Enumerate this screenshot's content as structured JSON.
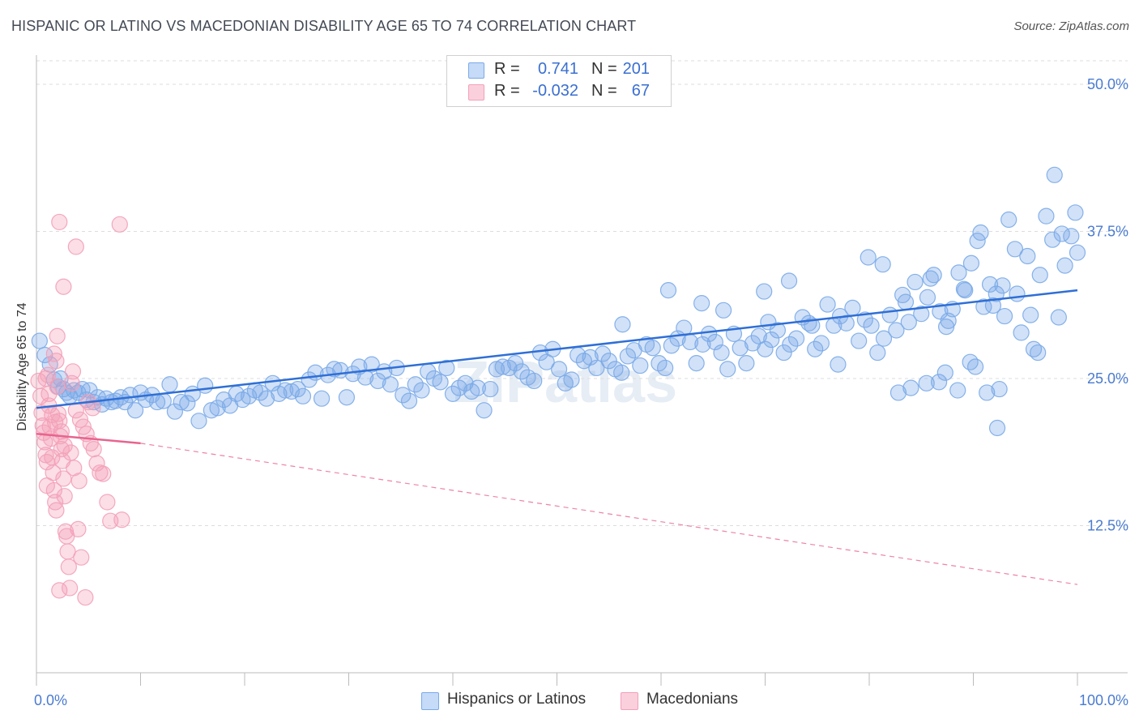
{
  "title": "HISPANIC OR LATINO VS MACEDONIAN DISABILITY AGE 65 TO 74 CORRELATION CHART",
  "source": "Source: ZipAtlas.com",
  "watermark": "ZIPatlas",
  "legend": {
    "rows": [
      {
        "r_label": "R =",
        "r_value": "0.741",
        "n_label": "N =",
        "n_value": "201",
        "color": "#7aaae8"
      },
      {
        "r_label": "R =",
        "r_value": "-0.032",
        "n_label": "N =",
        "n_value": "67",
        "color": "#f3a0b8"
      }
    ]
  },
  "bottom_legend": [
    {
      "label": "Hispanics or Latinos",
      "color": "#7aaae8"
    },
    {
      "label": "Macedonians",
      "color": "#f3a0b8"
    }
  ],
  "chart_data": {
    "type": "scatter",
    "title": "HISPANIC OR LATINO VS MACEDONIAN DISABILITY AGE 65 TO 74 CORRELATION CHART",
    "xlabel": "",
    "ylabel": "Disability Age 65 to 74",
    "xlim": [
      0,
      100
    ],
    "ylim": [
      0,
      52
    ],
    "x_tick_labels": [
      "0.0%",
      "100.0%"
    ],
    "y_ticks": [
      12.5,
      25.0,
      37.5,
      50.0
    ],
    "y_tick_labels": [
      "12.5%",
      "25.0%",
      "37.5%",
      "50.0%"
    ],
    "grid": true,
    "series": [
      {
        "name": "Hispanics or Latinos",
        "color": "#7aaae8",
        "trend": {
          "x0": 0,
          "y0": 22.5,
          "x1": 100,
          "y1": 32.5,
          "style": "solid"
        },
        "points": [
          [
            0.3,
            28.2
          ],
          [
            0.8,
            27.0
          ],
          [
            1.3,
            26.2
          ],
          [
            1.7,
            24.9
          ],
          [
            2.1,
            24.3
          ],
          [
            2.3,
            25.0
          ],
          [
            2.6,
            24.1
          ],
          [
            2.9,
            23.8
          ],
          [
            3.2,
            23.5
          ],
          [
            3.6,
            24.0
          ],
          [
            4.0,
            23.8
          ],
          [
            4.4,
            24.1
          ],
          [
            4.8,
            23.2
          ],
          [
            5.1,
            24.0
          ],
          [
            5.5,
            23.0
          ],
          [
            5.9,
            23.4
          ],
          [
            6.3,
            22.8
          ],
          [
            6.7,
            23.3
          ],
          [
            7.2,
            23.0
          ],
          [
            7.6,
            23.1
          ],
          [
            8.1,
            23.4
          ],
          [
            8.5,
            23.0
          ],
          [
            9.0,
            23.6
          ],
          [
            9.5,
            22.3
          ],
          [
            10.0,
            23.8
          ],
          [
            10.5,
            23.2
          ],
          [
            11.1,
            23.6
          ],
          [
            11.6,
            23.0
          ],
          [
            12.2,
            23.1
          ],
          [
            12.8,
            24.5
          ],
          [
            13.3,
            22.2
          ],
          [
            13.9,
            23.0
          ],
          [
            14.5,
            22.9
          ],
          [
            15.0,
            23.7
          ],
          [
            15.6,
            21.4
          ],
          [
            16.2,
            24.4
          ],
          [
            16.8,
            22.3
          ],
          [
            17.4,
            22.5
          ],
          [
            18.0,
            23.2
          ],
          [
            18.6,
            22.7
          ],
          [
            19.2,
            23.7
          ],
          [
            19.8,
            23.2
          ],
          [
            20.4,
            23.5
          ],
          [
            21.0,
            24.0
          ],
          [
            21.5,
            23.8
          ],
          [
            22.1,
            23.3
          ],
          [
            22.7,
            24.6
          ],
          [
            23.3,
            23.7
          ],
          [
            23.9,
            24.0
          ],
          [
            24.5,
            23.9
          ],
          [
            25.1,
            24.1
          ],
          [
            25.6,
            23.5
          ],
          [
            26.2,
            24.9
          ],
          [
            26.8,
            25.5
          ],
          [
            27.4,
            23.3
          ],
          [
            28.0,
            25.3
          ],
          [
            28.6,
            25.8
          ],
          [
            29.2,
            25.7
          ],
          [
            29.8,
            23.4
          ],
          [
            30.4,
            25.4
          ],
          [
            31.0,
            26.0
          ],
          [
            31.6,
            25.1
          ],
          [
            32.2,
            26.2
          ],
          [
            32.8,
            24.8
          ],
          [
            33.4,
            25.6
          ],
          [
            34.0,
            24.5
          ],
          [
            34.6,
            25.9
          ],
          [
            35.2,
            23.6
          ],
          [
            35.8,
            23.1
          ],
          [
            36.4,
            24.5
          ],
          [
            37.0,
            24.0
          ],
          [
            37.6,
            25.6
          ],
          [
            38.2,
            25.0
          ],
          [
            38.8,
            24.7
          ],
          [
            39.4,
            25.9
          ],
          [
            40.0,
            23.7
          ],
          [
            40.6,
            24.2
          ],
          [
            41.2,
            24.6
          ],
          [
            41.8,
            23.9
          ],
          [
            42.4,
            24.2
          ],
          [
            43.0,
            22.3
          ],
          [
            43.6,
            24.1
          ],
          [
            44.2,
            25.8
          ],
          [
            44.8,
            26.0
          ],
          [
            45.4,
            25.9
          ],
          [
            46.0,
            26.3
          ],
          [
            46.6,
            25.6
          ],
          [
            47.2,
            25.1
          ],
          [
            47.8,
            24.8
          ],
          [
            48.4,
            27.2
          ],
          [
            49.0,
            26.4
          ],
          [
            49.6,
            27.5
          ],
          [
            50.2,
            25.8
          ],
          [
            50.8,
            24.6
          ],
          [
            51.4,
            24.9
          ],
          [
            52.0,
            27.0
          ],
          [
            52.6,
            26.5
          ],
          [
            53.2,
            26.8
          ],
          [
            53.8,
            25.9
          ],
          [
            54.4,
            27.1
          ],
          [
            55.0,
            26.5
          ],
          [
            55.6,
            25.8
          ],
          [
            56.2,
            25.5
          ],
          [
            56.8,
            26.9
          ],
          [
            57.4,
            27.4
          ],
          [
            58.0,
            26.1
          ],
          [
            58.6,
            27.9
          ],
          [
            59.2,
            27.6
          ],
          [
            59.8,
            26.3
          ],
          [
            60.4,
            25.9
          ],
          [
            61.0,
            27.8
          ],
          [
            61.6,
            28.4
          ],
          [
            62.2,
            29.3
          ],
          [
            62.8,
            28.1
          ],
          [
            63.4,
            26.3
          ],
          [
            64.0,
            27.9
          ],
          [
            64.6,
            28.8
          ],
          [
            65.2,
            28.1
          ],
          [
            65.8,
            27.2
          ],
          [
            66.4,
            25.8
          ],
          [
            67.0,
            28.8
          ],
          [
            67.6,
            27.6
          ],
          [
            68.2,
            26.3
          ],
          [
            68.8,
            28.0
          ],
          [
            69.4,
            28.6
          ],
          [
            70.0,
            27.5
          ],
          [
            70.6,
            28.3
          ],
          [
            71.2,
            29.1
          ],
          [
            71.8,
            27.2
          ],
          [
            72.4,
            27.9
          ],
          [
            73.0,
            28.4
          ],
          [
            73.6,
            30.2
          ],
          [
            74.2,
            29.7
          ],
          [
            74.8,
            27.5
          ],
          [
            75.4,
            28.0
          ],
          [
            76.0,
            31.3
          ],
          [
            76.6,
            29.5
          ],
          [
            77.2,
            30.3
          ],
          [
            77.8,
            29.7
          ],
          [
            78.4,
            31.0
          ],
          [
            79.0,
            28.2
          ],
          [
            79.6,
            30.0
          ],
          [
            80.2,
            29.5
          ],
          [
            80.8,
            27.2
          ],
          [
            81.4,
            28.4
          ],
          [
            82.0,
            30.4
          ],
          [
            82.6,
            29.1
          ],
          [
            83.2,
            32.1
          ],
          [
            83.8,
            29.8
          ],
          [
            84.4,
            33.2
          ],
          [
            85.0,
            30.5
          ],
          [
            85.6,
            31.9
          ],
          [
            86.2,
            33.8
          ],
          [
            86.8,
            30.7
          ],
          [
            87.4,
            29.4
          ],
          [
            88.0,
            30.9
          ],
          [
            88.6,
            34.0
          ],
          [
            89.2,
            32.5
          ],
          [
            89.8,
            34.8
          ],
          [
            90.4,
            36.7
          ],
          [
            91.0,
            31.1
          ],
          [
            91.6,
            33.0
          ],
          [
            92.2,
            32.2
          ],
          [
            92.8,
            32.9
          ],
          [
            93.4,
            38.5
          ],
          [
            94.0,
            36.0
          ],
          [
            94.6,
            28.9
          ],
          [
            95.2,
            35.4
          ],
          [
            95.8,
            27.5
          ],
          [
            96.4,
            33.8
          ],
          [
            97.0,
            38.8
          ],
          [
            97.6,
            36.8
          ],
          [
            98.2,
            30.2
          ],
          [
            98.8,
            34.6
          ],
          [
            99.4,
            37.1
          ],
          [
            100.0,
            35.7
          ],
          [
            56.3,
            29.6
          ],
          [
            63.9,
            31.4
          ],
          [
            69.9,
            32.4
          ],
          [
            72.3,
            33.3
          ],
          [
            79.9,
            35.3
          ],
          [
            81.3,
            34.7
          ],
          [
            83.5,
            31.5
          ],
          [
            85.9,
            33.5
          ],
          [
            87.6,
            29.9
          ],
          [
            89.1,
            32.6
          ],
          [
            90.7,
            37.4
          ],
          [
            91.9,
            31.2
          ],
          [
            93.0,
            30.3
          ],
          [
            94.2,
            32.2
          ],
          [
            95.5,
            30.4
          ],
          [
            96.2,
            27.2
          ],
          [
            97.8,
            42.3
          ],
          [
            98.5,
            37.3
          ],
          [
            99.8,
            39.1
          ],
          [
            60.7,
            32.5
          ],
          [
            66.0,
            30.8
          ],
          [
            70.3,
            29.8
          ],
          [
            74.5,
            29.5
          ],
          [
            77.0,
            26.2
          ],
          [
            82.8,
            23.8
          ],
          [
            84.0,
            24.2
          ],
          [
            85.5,
            24.6
          ],
          [
            88.5,
            24.0
          ],
          [
            92.3,
            20.8
          ],
          [
            91.3,
            23.8
          ],
          [
            92.5,
            24.1
          ],
          [
            89.7,
            26.4
          ],
          [
            90.2,
            26.0
          ],
          [
            87.3,
            25.5
          ],
          [
            86.7,
            24.7
          ]
        ]
      },
      {
        "name": "Macedonians",
        "color": "#f3a0b8",
        "trend": {
          "x0": 0,
          "y0": 20.3,
          "x1": 10,
          "y1": 19.5,
          "style": "solid"
        },
        "trend_extension": {
          "x0": 10,
          "y0": 19.5,
          "x1": 100,
          "y1": 7.5,
          "style": "dashed"
        },
        "points": [
          [
            0.2,
            24.8
          ],
          [
            0.4,
            23.5
          ],
          [
            0.5,
            22.1
          ],
          [
            0.6,
            21.0
          ],
          [
            0.7,
            20.4
          ],
          [
            0.8,
            19.6
          ],
          [
            0.9,
            18.5
          ],
          [
            1.0,
            17.9
          ],
          [
            1.1,
            25.3
          ],
          [
            1.2,
            22.7
          ],
          [
            1.3,
            20.9
          ],
          [
            1.4,
            19.9
          ],
          [
            1.5,
            18.3
          ],
          [
            1.6,
            17.0
          ],
          [
            1.7,
            15.5
          ],
          [
            1.8,
            14.5
          ],
          [
            1.9,
            13.8
          ],
          [
            2.0,
            24.3
          ],
          [
            2.1,
            22.0
          ],
          [
            2.2,
            21.4
          ],
          [
            2.3,
            20.1
          ],
          [
            2.4,
            19.0
          ],
          [
            2.5,
            18.0
          ],
          [
            2.6,
            16.5
          ],
          [
            2.7,
            15.0
          ],
          [
            2.8,
            12.0
          ],
          [
            2.9,
            11.6
          ],
          [
            3.0,
            10.3
          ],
          [
            3.1,
            9.0
          ],
          [
            3.2,
            7.2
          ],
          [
            1.7,
            27.1
          ],
          [
            1.9,
            26.5
          ],
          [
            2.0,
            28.6
          ],
          [
            2.2,
            38.3
          ],
          [
            2.6,
            32.8
          ],
          [
            3.8,
            36.2
          ],
          [
            8.0,
            38.1
          ],
          [
            3.5,
            25.6
          ],
          [
            3.8,
            22.3
          ],
          [
            4.2,
            21.5
          ],
          [
            4.5,
            20.9
          ],
          [
            4.8,
            20.3
          ],
          [
            5.2,
            19.5
          ],
          [
            5.5,
            19.0
          ],
          [
            5.8,
            17.8
          ],
          [
            6.1,
            17.0
          ],
          [
            6.4,
            16.9
          ],
          [
            6.8,
            14.5
          ],
          [
            7.1,
            12.9
          ],
          [
            4.0,
            12.2
          ],
          [
            4.3,
            9.8
          ],
          [
            4.7,
            6.4
          ],
          [
            8.2,
            13.0
          ],
          [
            5.0,
            23.0
          ],
          [
            5.4,
            22.5
          ],
          [
            0.9,
            25.0
          ],
          [
            1.2,
            23.7
          ],
          [
            1.5,
            21.9
          ],
          [
            1.8,
            21.3
          ],
          [
            2.4,
            20.5
          ],
          [
            2.7,
            19.3
          ],
          [
            3.3,
            18.7
          ],
          [
            3.6,
            17.4
          ],
          [
            4.1,
            16.3
          ],
          [
            2.2,
            7.0
          ],
          [
            1.0,
            15.9
          ],
          [
            3.4,
            24.6
          ]
        ]
      }
    ]
  }
}
